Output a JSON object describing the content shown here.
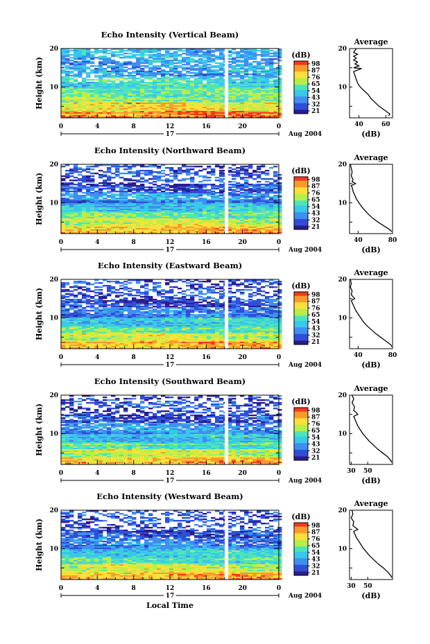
{
  "chart_data": [
    {
      "type": "heatmap",
      "title": "Echo Intensity (Vertical Beam)",
      "ylabel": "Height (km)",
      "y_ticks": [
        "20",
        "10"
      ],
      "x_ticks": [
        "0",
        "4",
        "8",
        "12",
        "16",
        "20",
        "0"
      ],
      "day_label": "17",
      "date_label": "Aug 2004",
      "xlim": [
        0,
        24
      ],
      "ylim": [
        2,
        20
      ],
      "colorbar": {
        "unit": "(dB)",
        "labels": [
          "98",
          "87",
          "76",
          "65",
          "54",
          "43",
          "32",
          "21"
        ]
      },
      "average_profile": {
        "title": "Average",
        "xlabel": "(dB)",
        "x_ticks": [
          "40",
          "60"
        ],
        "y_ticks": [
          "20",
          "10"
        ],
        "xlim": [
          33,
          65
        ],
        "points": [
          [
            38,
            20
          ],
          [
            36,
            19
          ],
          [
            39,
            18.5
          ],
          [
            36,
            18
          ],
          [
            38,
            17.5
          ],
          [
            36,
            17
          ],
          [
            39,
            16.5
          ],
          [
            37,
            16
          ],
          [
            40,
            15.5
          ],
          [
            36,
            15
          ],
          [
            42,
            14.8
          ],
          [
            36,
            14
          ],
          [
            37,
            13
          ],
          [
            38,
            12
          ],
          [
            39,
            11
          ],
          [
            41,
            10
          ],
          [
            44,
            9
          ],
          [
            47,
            8
          ],
          [
            49,
            7
          ],
          [
            52,
            6
          ],
          [
            55,
            5
          ],
          [
            59,
            4
          ],
          [
            63,
            3
          ],
          [
            62,
            2.5
          ]
        ]
      }
    },
    {
      "type": "heatmap",
      "title": "Echo Intensity (Northward Beam)",
      "ylabel": "Height (km)",
      "y_ticks": [
        "20",
        "10"
      ],
      "x_ticks": [
        "0",
        "4",
        "8",
        "12",
        "16",
        "20",
        "0"
      ],
      "day_label": "17",
      "date_label": "Aug 2004",
      "xlim": [
        0,
        24
      ],
      "ylim": [
        2,
        20
      ],
      "colorbar": {
        "unit": "(dB)",
        "labels": [
          "98",
          "87",
          "76",
          "65",
          "54",
          "43",
          "32",
          "21"
        ]
      },
      "average_profile": {
        "title": "Average",
        "xlabel": "(dB)",
        "x_ticks": [
          "40",
          "80"
        ],
        "y_ticks": [
          "20",
          "10"
        ],
        "xlim": [
          30,
          80
        ],
        "points": [
          [
            31,
            20
          ],
          [
            32,
            19
          ],
          [
            33,
            18
          ],
          [
            32,
            17
          ],
          [
            34,
            16
          ],
          [
            33,
            15.5
          ],
          [
            37,
            15
          ],
          [
            32,
            14.5
          ],
          [
            33,
            14
          ],
          [
            34,
            13
          ],
          [
            36,
            12
          ],
          [
            38,
            11
          ],
          [
            41,
            10
          ],
          [
            44,
            9
          ],
          [
            48,
            8
          ],
          [
            52,
            7
          ],
          [
            57,
            6
          ],
          [
            63,
            5
          ],
          [
            70,
            4
          ],
          [
            77,
            3
          ],
          [
            79,
            2.5
          ]
        ]
      }
    },
    {
      "type": "heatmap",
      "title": "Echo Intensity (Eastward Beam)",
      "ylabel": "Height (km)",
      "y_ticks": [
        "20",
        "10"
      ],
      "x_ticks": [
        "0",
        "4",
        "8",
        "12",
        "16",
        "20",
        "0"
      ],
      "day_label": "17",
      "date_label": "Aug 2004",
      "xlim": [
        0,
        24
      ],
      "ylim": [
        2,
        20
      ],
      "colorbar": {
        "unit": "(dB)",
        "labels": [
          "98",
          "87",
          "76",
          "65",
          "54",
          "43",
          "32",
          "21"
        ]
      },
      "average_profile": {
        "title": "Average",
        "xlabel": "(dB)",
        "x_ticks": [
          "40",
          "80"
        ],
        "y_ticks": [
          "20",
          "10"
        ],
        "xlim": [
          30,
          80
        ],
        "points": [
          [
            31,
            20
          ],
          [
            32,
            19
          ],
          [
            31,
            18
          ],
          [
            33,
            17
          ],
          [
            32,
            16
          ],
          [
            34,
            15.5
          ],
          [
            36,
            15
          ],
          [
            32,
            14.5
          ],
          [
            33,
            14
          ],
          [
            35,
            13
          ],
          [
            37,
            12
          ],
          [
            40,
            11
          ],
          [
            43,
            10
          ],
          [
            46,
            9
          ],
          [
            50,
            8
          ],
          [
            55,
            7
          ],
          [
            60,
            6
          ],
          [
            66,
            5
          ],
          [
            72,
            4
          ],
          [
            78,
            3
          ],
          [
            79,
            2.5
          ]
        ]
      }
    },
    {
      "type": "heatmap",
      "title": "Echo Intensity (Southward Beam)",
      "ylabel": "Height (km)",
      "y_ticks": [
        "20",
        "10"
      ],
      "x_ticks": [
        "0",
        "4",
        "8",
        "12",
        "16",
        "20",
        "0"
      ],
      "day_label": "17",
      "date_label": "Aug 2004",
      "xlim": [
        0,
        24
      ],
      "ylim": [
        2,
        20
      ],
      "colorbar": {
        "unit": "(dB)",
        "labels": [
          "98",
          "87",
          "76",
          "65",
          "54",
          "43",
          "32",
          "21"
        ]
      },
      "average_profile": {
        "title": "Average",
        "xlabel": "(dB)",
        "x_ticks": [
          "30",
          "50"
        ],
        "y_ticks": [
          "20",
          "10"
        ],
        "xlim": [
          28,
          80
        ],
        "points": [
          [
            31,
            20
          ],
          [
            33,
            19
          ],
          [
            31,
            18
          ],
          [
            34,
            17
          ],
          [
            33,
            16
          ],
          [
            36,
            15.5
          ],
          [
            38,
            15
          ],
          [
            33,
            14.5
          ],
          [
            34,
            14
          ],
          [
            36,
            13
          ],
          [
            38,
            12
          ],
          [
            41,
            11
          ],
          [
            44,
            10
          ],
          [
            48,
            9
          ],
          [
            52,
            8
          ],
          [
            57,
            7
          ],
          [
            62,
            6
          ],
          [
            68,
            5
          ],
          [
            74,
            4
          ],
          [
            78,
            3
          ],
          [
            79,
            2.5
          ]
        ]
      }
    },
    {
      "type": "heatmap",
      "title": "Echo Intensity (Westward Beam)",
      "ylabel": "Height (km)",
      "xlabel": "Local Time",
      "y_ticks": [
        "20",
        "10"
      ],
      "x_ticks": [
        "0",
        "4",
        "8",
        "12",
        "16",
        "20",
        "0"
      ],
      "day_label": "17",
      "date_label": "Aug 2004",
      "xlim": [
        0,
        24
      ],
      "ylim": [
        2,
        20
      ],
      "colorbar": {
        "unit": "(dB)",
        "labels": [
          "98",
          "87",
          "76",
          "65",
          "54",
          "43",
          "32",
          "21"
        ]
      },
      "average_profile": {
        "title": "Average",
        "xlabel": "(dB)",
        "x_ticks": [
          "30",
          "50"
        ],
        "y_ticks": [
          "20",
          "10"
        ],
        "xlim": [
          28,
          80
        ],
        "points": [
          [
            31,
            20
          ],
          [
            32,
            19
          ],
          [
            30,
            18
          ],
          [
            33,
            17
          ],
          [
            32,
            16
          ],
          [
            35,
            15.5
          ],
          [
            38,
            15
          ],
          [
            33,
            14.5
          ],
          [
            34,
            14
          ],
          [
            36,
            13
          ],
          [
            39,
            12
          ],
          [
            42,
            11
          ],
          [
            45,
            10
          ],
          [
            49,
            9
          ],
          [
            53,
            8
          ],
          [
            58,
            7
          ],
          [
            63,
            6
          ],
          [
            69,
            5
          ],
          [
            74,
            4
          ],
          [
            78,
            3
          ],
          [
            79,
            2.5
          ]
        ]
      }
    }
  ]
}
